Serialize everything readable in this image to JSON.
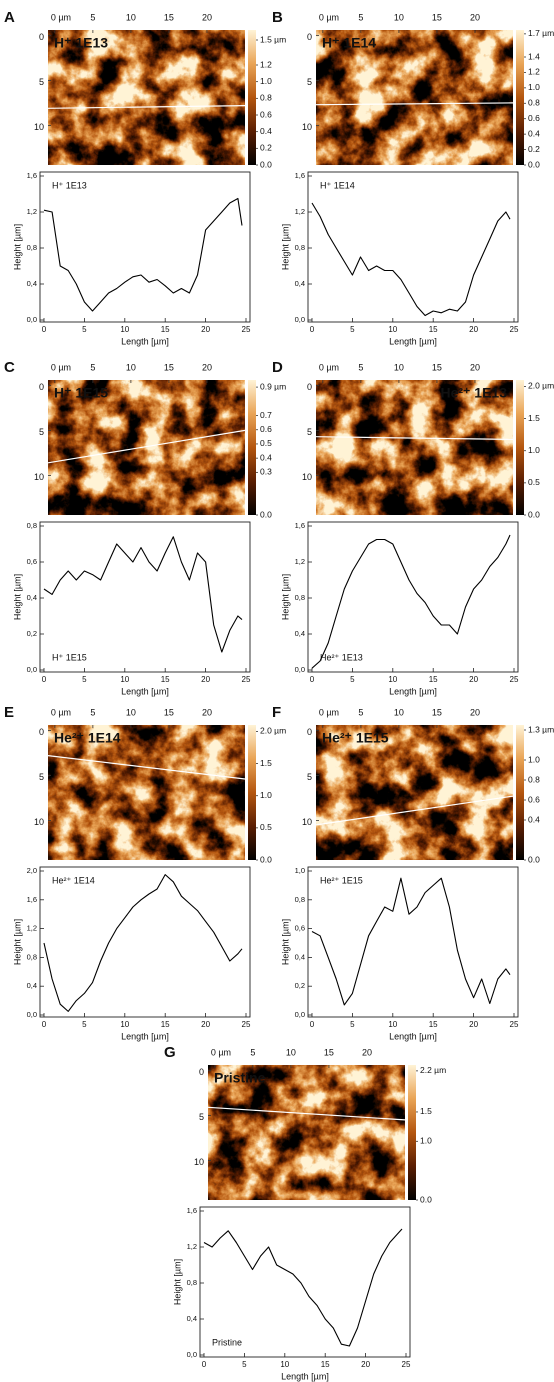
{
  "chart_data": [
    {
      "type": "heatmap",
      "panel": "A",
      "title": "H⁺ 1E13",
      "title_position": "top-left",
      "xlim": [
        -0.9,
        25
      ],
      "ylim": [
        -0.6,
        14.4
      ],
      "xticks": [
        {
          "value": 0,
          "label": "0 µm"
        },
        5,
        10,
        15,
        20
      ],
      "yticks": [
        0,
        5,
        10
      ],
      "colorbar_lim": [
        0,
        1.62
      ],
      "colorbar_ticks": [
        {
          "value": 1.5,
          "label": "1.5 µm"
        },
        1.2,
        {
          "value": 1.0,
          "label": "1.0"
        },
        0.8,
        0.6,
        0.4,
        0.2,
        {
          "value": 0,
          "label": "0.0"
        }
      ],
      "colors": [
        "#000000",
        "#5a1e02",
        "#b4560f",
        "#e9a456",
        "#fff3d6"
      ],
      "profile_line": {
        "x": [
          -0.9,
          25
        ],
        "y": [
          8.1,
          7.8
        ]
      },
      "profile_line_color": "#ffffff"
    },
    {
      "type": "line",
      "annotation": "H⁺ 1E13",
      "annotation_position": "top",
      "xlabel": "Length [µm]",
      "ylabel": "Height [µm]",
      "color": "#000000",
      "xlim": [
        0,
        25
      ],
      "ylim": [
        0,
        1.6
      ],
      "xticks": [
        0,
        5,
        10,
        15,
        20,
        25
      ],
      "yticks": [
        {
          "value": 0,
          "label": "0,0"
        },
        {
          "value": 0.4,
          "label": "0,4"
        },
        {
          "value": 0.8,
          "label": "0,8"
        },
        {
          "value": 1.2,
          "label": "1,2"
        },
        {
          "value": 1.6,
          "label": "1,6"
        }
      ],
      "x": [
        0,
        1,
        2,
        3,
        4,
        5,
        6,
        7,
        8,
        9,
        10,
        11,
        12,
        13,
        14,
        15,
        16,
        17,
        18,
        19,
        20,
        21,
        22,
        23,
        24,
        24.5
      ],
      "values": [
        1.22,
        1.2,
        0.6,
        0.55,
        0.4,
        0.2,
        0.1,
        0.2,
        0.3,
        0.35,
        0.42,
        0.48,
        0.5,
        0.42,
        0.45,
        0.38,
        0.3,
        0.35,
        0.3,
        0.5,
        1.0,
        1.1,
        1.2,
        1.3,
        1.35,
        1.05
      ]
    },
    {
      "type": "heatmap",
      "panel": "B",
      "title": "H⁺ 1E14",
      "title_position": "top-left",
      "xlim": [
        -0.9,
        25
      ],
      "ylim": [
        -0.6,
        14.4
      ],
      "xticks": [
        {
          "value": 0,
          "label": "0 µm"
        },
        5,
        10,
        15,
        20
      ],
      "yticks": [
        0,
        5,
        10
      ],
      "colorbar_lim": [
        0,
        1.75
      ],
      "colorbar_ticks": [
        {
          "value": 1.7,
          "label": "1.7 µm"
        },
        1.4,
        1.2,
        {
          "value": 1.0,
          "label": "1.0"
        },
        0.8,
        0.6,
        0.4,
        0.2,
        {
          "value": 0,
          "label": "0.0"
        }
      ],
      "colors": [
        "#000000",
        "#5a1e02",
        "#b4560f",
        "#e9a456",
        "#fff3d6"
      ],
      "profile_line": {
        "x": [
          -0.9,
          25
        ],
        "y": [
          7.7,
          7.5
        ]
      },
      "profile_line_color": "#ffffff"
    },
    {
      "type": "line",
      "annotation": "H⁺ 1E14",
      "annotation_position": "top",
      "xlabel": "Length [µm]",
      "ylabel": "Height [µm]",
      "color": "#000000",
      "xlim": [
        0,
        25
      ],
      "ylim": [
        0,
        1.6
      ],
      "xticks": [
        0,
        5,
        10,
        15,
        20,
        25
      ],
      "yticks": [
        {
          "value": 0,
          "label": "0,0"
        },
        {
          "value": 0.4,
          "label": "0,4"
        },
        {
          "value": 0.8,
          "label": "0,8"
        },
        {
          "value": 1.2,
          "label": "1,2"
        },
        {
          "value": 1.6,
          "label": "1,6"
        }
      ],
      "x": [
        0,
        1,
        2,
        3,
        4,
        5,
        6,
        7,
        8,
        9,
        10,
        11,
        12,
        13,
        14,
        15,
        16,
        17,
        18,
        19,
        20,
        21,
        22,
        23,
        24,
        24.5
      ],
      "values": [
        1.3,
        1.15,
        0.95,
        0.8,
        0.65,
        0.5,
        0.7,
        0.55,
        0.6,
        0.55,
        0.55,
        0.45,
        0.3,
        0.15,
        0.05,
        0.1,
        0.08,
        0.12,
        0.1,
        0.2,
        0.5,
        0.7,
        0.9,
        1.1,
        1.2,
        1.12
      ]
    },
    {
      "type": "heatmap",
      "panel": "C",
      "title": "H⁺ 1E15",
      "title_position": "top-left",
      "xlim": [
        -0.9,
        25
      ],
      "ylim": [
        -0.6,
        14.4
      ],
      "xticks": [
        {
          "value": 0,
          "label": "0 µm"
        },
        5,
        10,
        15,
        20
      ],
      "yticks": [
        0,
        5,
        10
      ],
      "colorbar_lim": [
        0,
        0.95
      ],
      "colorbar_ticks": [
        {
          "value": 0.9,
          "label": "0.9 µm"
        },
        0.7,
        0.6,
        0.5,
        0.4,
        0.3,
        {
          "value": 0,
          "label": "0.0"
        }
      ],
      "colors": [
        "#000000",
        "#5a1e02",
        "#b4560f",
        "#e9a456",
        "#fff3d6"
      ],
      "profile_line": {
        "x": [
          -0.9,
          25
        ],
        "y": [
          8.6,
          5.0
        ]
      },
      "profile_line_color": "#ffffff"
    },
    {
      "type": "line",
      "annotation": "H⁺ 1E15",
      "annotation_position": "bottom",
      "xlabel": "Length [µm]",
      "ylabel": "Height [µm]",
      "color": "#000000",
      "xlim": [
        0,
        25
      ],
      "ylim": [
        0,
        0.8
      ],
      "xticks": [
        0,
        5,
        10,
        15,
        20,
        25
      ],
      "yticks": [
        {
          "value": 0,
          "label": "0,0"
        },
        {
          "value": 0.2,
          "label": "0,2"
        },
        {
          "value": 0.4,
          "label": "0,4"
        },
        {
          "value": 0.6,
          "label": "0,6"
        },
        {
          "value": 0.8,
          "label": "0,8"
        }
      ],
      "x": [
        0,
        1,
        2,
        3,
        4,
        5,
        6,
        7,
        8,
        9,
        10,
        11,
        12,
        13,
        14,
        15,
        16,
        17,
        18,
        19,
        20,
        21,
        22,
        23,
        24,
        24.5
      ],
      "values": [
        0.45,
        0.42,
        0.5,
        0.55,
        0.5,
        0.55,
        0.53,
        0.5,
        0.6,
        0.7,
        0.65,
        0.6,
        0.68,
        0.6,
        0.55,
        0.65,
        0.74,
        0.6,
        0.5,
        0.65,
        0.6,
        0.25,
        0.1,
        0.22,
        0.3,
        0.28
      ]
    },
    {
      "type": "heatmap",
      "panel": "D",
      "title": "He²⁺ 1E13",
      "title_position": "top-right",
      "xlim": [
        -0.9,
        25
      ],
      "ylim": [
        -0.6,
        14.4
      ],
      "xticks": [
        {
          "value": 0,
          "label": "0 µm"
        },
        5,
        10,
        15,
        20
      ],
      "yticks": [
        0,
        5,
        10
      ],
      "colorbar_lim": [
        0,
        2.1
      ],
      "colorbar_ticks": [
        {
          "value": 2.0,
          "label": "2.0 µm"
        },
        1.5,
        {
          "value": 1.0,
          "label": "1.0"
        },
        0.5,
        {
          "value": 0,
          "label": "0.0"
        }
      ],
      "colors": [
        "#000000",
        "#5a1e02",
        "#b4560f",
        "#e9a456",
        "#fff3d6"
      ],
      "profile_line": {
        "x": [
          -0.9,
          25
        ],
        "y": [
          5.7,
          6.0
        ]
      },
      "profile_line_color": "#ffffff"
    },
    {
      "type": "line",
      "annotation": "He²⁺ 1E13",
      "annotation_position": "bottom",
      "xlabel": "Length [µm]",
      "ylabel": "Height [µm]",
      "color": "#000000",
      "xlim": [
        0,
        25
      ],
      "ylim": [
        0,
        1.6
      ],
      "xticks": [
        0,
        5,
        10,
        15,
        20,
        25
      ],
      "yticks": [
        {
          "value": 0,
          "label": "0,0"
        },
        {
          "value": 0.4,
          "label": "0,4"
        },
        {
          "value": 0.8,
          "label": "0,8"
        },
        {
          "value": 1.2,
          "label": "1,2"
        },
        {
          "value": 1.6,
          "label": "1,6"
        }
      ],
      "x": [
        0,
        1,
        2,
        3,
        4,
        5,
        6,
        7,
        8,
        9,
        10,
        11,
        12,
        13,
        14,
        15,
        16,
        17,
        18,
        19,
        20,
        21,
        22,
        23,
        24,
        24.5
      ],
      "values": [
        0.02,
        0.1,
        0.3,
        0.6,
        0.9,
        1.1,
        1.25,
        1.4,
        1.45,
        1.45,
        1.4,
        1.2,
        1.0,
        0.85,
        0.75,
        0.6,
        0.5,
        0.5,
        0.4,
        0.7,
        0.9,
        1.0,
        1.15,
        1.25,
        1.4,
        1.5
      ]
    },
    {
      "type": "heatmap",
      "panel": "E",
      "title": "He²⁺ 1E14",
      "title_position": "top-left",
      "xlim": [
        -0.9,
        25
      ],
      "ylim": [
        -0.6,
        14.4
      ],
      "xticks": [
        {
          "value": 0,
          "label": "0 µm"
        },
        5,
        10,
        15,
        20
      ],
      "yticks": [
        0,
        5,
        10
      ],
      "colorbar_lim": [
        0,
        2.1
      ],
      "colorbar_ticks": [
        {
          "value": 2.0,
          "label": "2.0 µm"
        },
        1.5,
        {
          "value": 1.0,
          "label": "1.0"
        },
        0.5,
        {
          "value": 0,
          "label": "0.0"
        }
      ],
      "colors": [
        "#000000",
        "#5a1e02",
        "#b4560f",
        "#e9a456",
        "#fff3d6"
      ],
      "profile_line": {
        "x": [
          -0.9,
          25
        ],
        "y": [
          2.8,
          5.4
        ]
      },
      "profile_line_color": "#ffffff"
    },
    {
      "type": "line",
      "annotation": "He²⁺ 1E14",
      "annotation_position": "top",
      "xlabel": "Length [µm]",
      "ylabel": "Height [µm]",
      "color": "#000000",
      "xlim": [
        0,
        25
      ],
      "ylim": [
        0,
        2.0
      ],
      "xticks": [
        0,
        5,
        10,
        15,
        20,
        25
      ],
      "yticks": [
        {
          "value": 0,
          "label": "0,0"
        },
        {
          "value": 0.4,
          "label": "0,4"
        },
        {
          "value": 0.8,
          "label": "0,8"
        },
        {
          "value": 1.2,
          "label": "1,2"
        },
        {
          "value": 1.6,
          "label": "1,6"
        },
        {
          "value": 2.0,
          "label": "2,0"
        }
      ],
      "x": [
        0,
        1,
        2,
        3,
        4,
        5,
        6,
        7,
        8,
        9,
        10,
        11,
        12,
        13,
        14,
        15,
        16,
        17,
        18,
        19,
        20,
        21,
        22,
        23,
        24,
        24.5
      ],
      "values": [
        1.0,
        0.5,
        0.15,
        0.05,
        0.2,
        0.3,
        0.45,
        0.75,
        1.0,
        1.2,
        1.35,
        1.5,
        1.6,
        1.68,
        1.75,
        1.95,
        1.85,
        1.65,
        1.55,
        1.45,
        1.3,
        1.15,
        0.95,
        0.75,
        0.85,
        0.92
      ]
    },
    {
      "type": "heatmap",
      "panel": "F",
      "title": "He²⁺ 1E15",
      "title_position": "top-left",
      "xlim": [
        -0.9,
        25
      ],
      "ylim": [
        -0.6,
        14.4
      ],
      "xticks": [
        {
          "value": 0,
          "label": "0 µm"
        },
        5,
        10,
        15,
        20
      ],
      "yticks": [
        0,
        5,
        10
      ],
      "colorbar_lim": [
        0,
        1.35
      ],
      "colorbar_ticks": [
        {
          "value": 1.3,
          "label": "1.3 µm"
        },
        {
          "value": 1.0,
          "label": "1.0"
        },
        0.8,
        0.6,
        0.4,
        {
          "value": 0,
          "label": "0.0"
        }
      ],
      "colors": [
        "#000000",
        "#5a1e02",
        "#b4560f",
        "#e9a456",
        "#fff3d6"
      ],
      "profile_line": {
        "x": [
          -0.9,
          25
        ],
        "y": [
          10.5,
          7.3
        ]
      },
      "profile_line_color": "#ffffff"
    },
    {
      "type": "line",
      "annotation": "He²⁺ 1E15",
      "annotation_position": "top",
      "xlabel": "Length [µm]",
      "ylabel": "Height [µm]",
      "color": "#000000",
      "xlim": [
        0,
        25
      ],
      "ylim": [
        0,
        1.0
      ],
      "xticks": [
        0,
        5,
        10,
        15,
        20,
        25
      ],
      "yticks": [
        {
          "value": 0,
          "label": "0,0"
        },
        {
          "value": 0.2,
          "label": "0,2"
        },
        {
          "value": 0.4,
          "label": "0,4"
        },
        {
          "value": 0.6,
          "label": "0,6"
        },
        {
          "value": 0.8,
          "label": "0,8"
        },
        {
          "value": 1.0,
          "label": "1,0"
        }
      ],
      "x": [
        0,
        1,
        2,
        3,
        4,
        5,
        6,
        7,
        8,
        9,
        10,
        11,
        12,
        13,
        14,
        15,
        16,
        17,
        18,
        19,
        20,
        21,
        22,
        23,
        24,
        24.5
      ],
      "values": [
        0.58,
        0.55,
        0.4,
        0.25,
        0.07,
        0.15,
        0.35,
        0.55,
        0.65,
        0.75,
        0.72,
        0.95,
        0.7,
        0.75,
        0.85,
        0.9,
        0.95,
        0.75,
        0.45,
        0.25,
        0.12,
        0.25,
        0.08,
        0.25,
        0.32,
        0.28
      ]
    },
    {
      "type": "heatmap",
      "panel": "G",
      "title": "Pristine",
      "title_position": "top-left",
      "xlim": [
        -0.9,
        25
      ],
      "ylim": [
        -0.6,
        14.4
      ],
      "xticks": [
        {
          "value": 0,
          "label": "0 µm"
        },
        5,
        10,
        15,
        20
      ],
      "yticks": [
        0,
        5,
        10
      ],
      "colorbar_lim": [
        0,
        2.3
      ],
      "colorbar_ticks": [
        {
          "value": 2.2,
          "label": "2.2 µm"
        },
        1.5,
        {
          "value": 1.0,
          "label": "1.0"
        },
        {
          "value": 0,
          "label": "0.0"
        }
      ],
      "colors": [
        "#000000",
        "#5a1e02",
        "#b4560f",
        "#e9a456",
        "#fff3d6"
      ],
      "profile_line": {
        "x": [
          -0.9,
          25
        ],
        "y": [
          4.1,
          5.5
        ]
      },
      "profile_line_color": "#ffffff"
    },
    {
      "type": "line",
      "annotation": "Pristine",
      "annotation_position": "bottom",
      "xlabel": "Length [µm]",
      "ylabel": "Height [µm]",
      "color": "#000000",
      "xlim": [
        0,
        25
      ],
      "ylim": [
        0,
        1.6
      ],
      "xticks": [
        0,
        5,
        10,
        15,
        20,
        25
      ],
      "yticks": [
        {
          "value": 0,
          "label": "0,0"
        },
        {
          "value": 0.4,
          "label": "0,4"
        },
        {
          "value": 0.8,
          "label": "0,8"
        },
        {
          "value": 1.2,
          "label": "1,2"
        },
        {
          "value": 1.6,
          "label": "1,6"
        }
      ],
      "x": [
        0,
        1,
        2,
        3,
        4,
        5,
        6,
        7,
        8,
        9,
        10,
        11,
        12,
        13,
        14,
        15,
        16,
        17,
        18,
        19,
        20,
        21,
        22,
        23,
        24,
        24.5
      ],
      "values": [
        1.25,
        1.2,
        1.3,
        1.38,
        1.25,
        1.1,
        0.95,
        1.1,
        1.2,
        1.0,
        0.95,
        0.9,
        0.8,
        0.65,
        0.55,
        0.4,
        0.3,
        0.12,
        0.1,
        0.3,
        0.6,
        0.9,
        1.1,
        1.25,
        1.35,
        1.4
      ]
    }
  ]
}
